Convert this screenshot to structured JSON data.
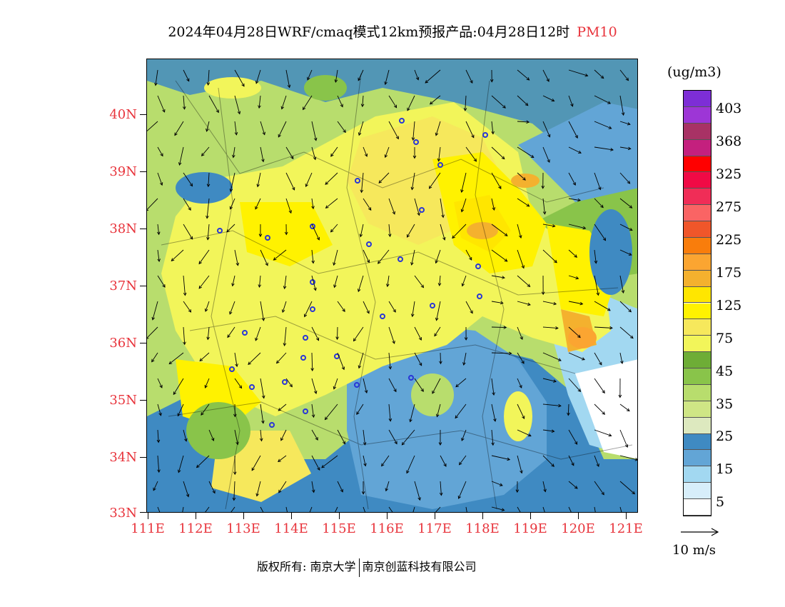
{
  "title": {
    "main": "2024年04月28日WRF/cmaq模式12km预报产品:04月28日12时",
    "variable": "PM10"
  },
  "map": {
    "latitude_labels": [
      "40N",
      "39N",
      "38N",
      "37N",
      "36N",
      "35N",
      "34N",
      "33N"
    ],
    "longitude_labels": [
      "111E",
      "112E",
      "113E",
      "114E",
      "115E",
      "116E",
      "117E",
      "118E",
      "119E",
      "120E",
      "121E"
    ],
    "label_color": "#e8343c"
  },
  "legend": {
    "unit": "(ug/m3)",
    "labels": [
      "403",
      "368",
      "325",
      "275",
      "225",
      "175",
      "125",
      "75",
      "45",
      "35",
      "25",
      "15",
      "5"
    ],
    "colors": [
      "#7d2ed6",
      "#9d36d6",
      "#a83265",
      "#c4207e",
      "#ff0000",
      "#f00a45",
      "#f02d57",
      "#fa6464",
      "#f0562a",
      "#f97d0c",
      "#fba531",
      "#f4b12e",
      "#ffe600",
      "#fff200",
      "#f6e85c",
      "#f2f55a",
      "#6ead36",
      "#89c44a",
      "#b8dd6d",
      "#cfe685",
      "#dde9bf",
      "#3f8ac2",
      "#62a5d6",
      "#a2d8f1",
      "#d7eefa",
      "#ffffff"
    ]
  },
  "wind_reference": {
    "label": "10 m/s"
  },
  "copyright": {
    "prefix": "版权所有:",
    "org1": "南京大学",
    "org2": "南京创蓝科技有限公司"
  }
}
